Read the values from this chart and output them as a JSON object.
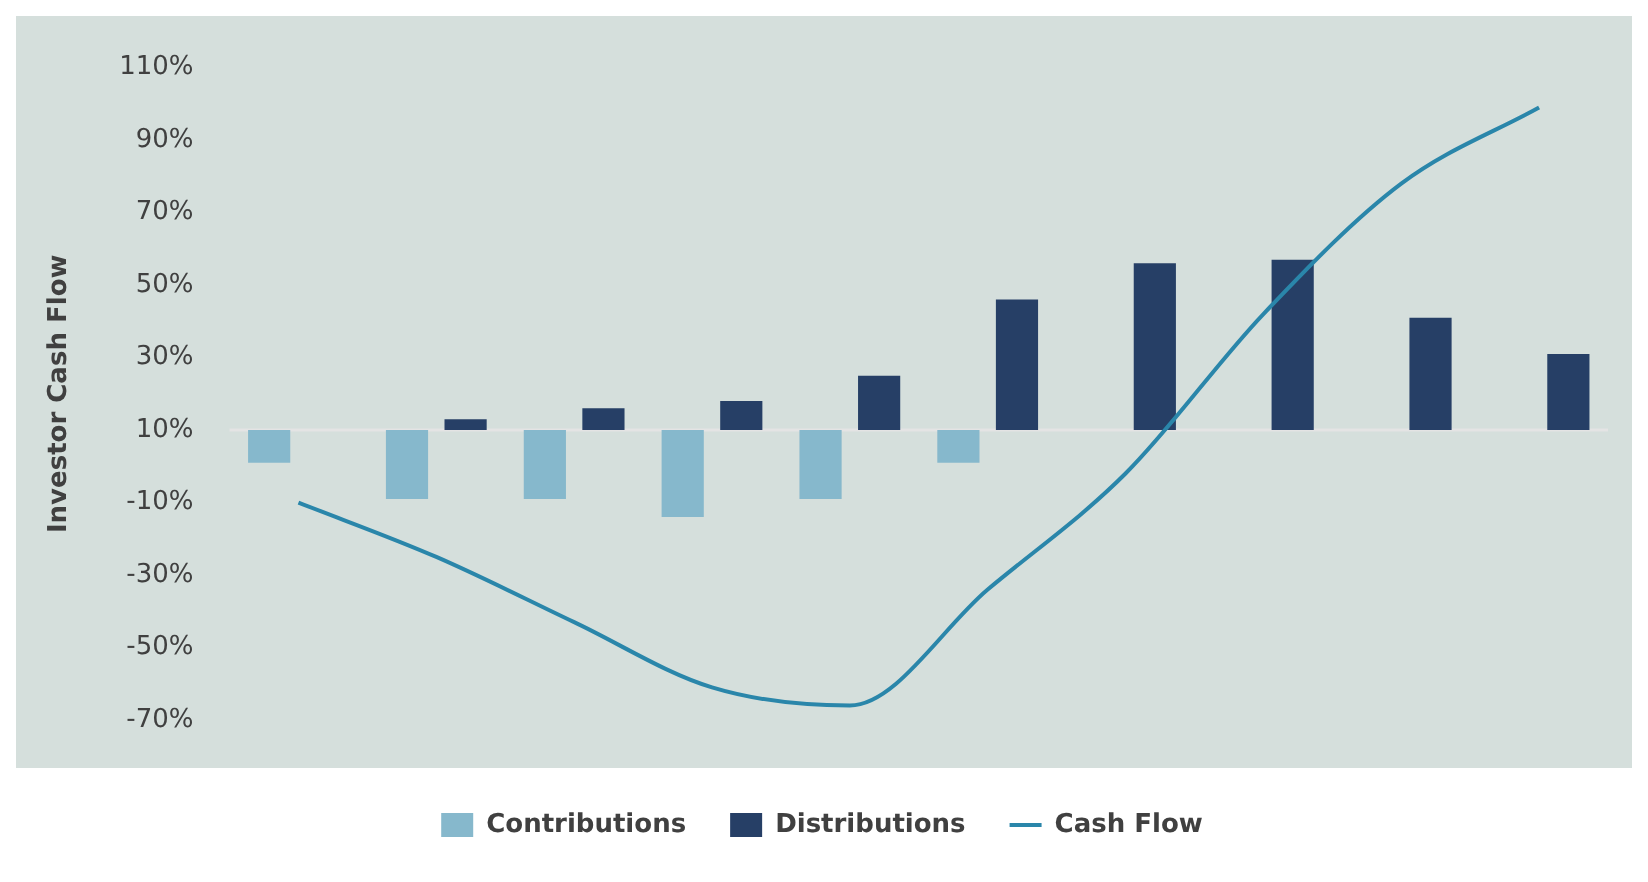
{
  "chart_data": {
    "type": "bar",
    "ylabel": "Investor Cash Flow",
    "categories": [
      null,
      null,
      null,
      null,
      null,
      null,
      null,
      null,
      null,
      null
    ],
    "series": [
      {
        "name": "Contributions",
        "color": "#86b8cc",
        "base": [
          10,
          10,
          10,
          10,
          10,
          10,
          null,
          null,
          null,
          null
        ],
        "values": [
          -9,
          -19,
          -19,
          -24,
          -19,
          -9,
          null,
          null,
          null,
          null
        ]
      },
      {
        "name": "Distributions",
        "color": "#263f66",
        "base": [
          null,
          10,
          10,
          10,
          10,
          10,
          10,
          10,
          10,
          10
        ],
        "values": [
          null,
          3,
          6,
          8,
          15,
          36,
          46,
          47,
          31,
          21
        ]
      },
      {
        "name": "Cash Flow",
        "type": "line",
        "color": "#2a86aa",
        "values": [
          -10,
          -25,
          -43,
          -61,
          -66,
          -34,
          -2,
          42,
          78,
          99
        ]
      }
    ],
    "ylim": [
      -70,
      110
    ],
    "yticks": [
      {
        "value": -70,
        "label": "-70%"
      },
      {
        "value": -50,
        "label": "-50%"
      },
      {
        "value": -30,
        "label": "-30%"
      },
      {
        "value": -10,
        "label": "-10%"
      },
      {
        "value": 10,
        "label": "10%"
      },
      {
        "value": 30,
        "label": "30%"
      },
      {
        "value": 50,
        "label": "50%"
      },
      {
        "value": 70,
        "label": "70%"
      },
      {
        "value": 90,
        "label": "90%"
      },
      {
        "value": 110,
        "label": "110%"
      }
    ],
    "ref_lines": [
      {
        "axis": "y",
        "value": 10,
        "color": "#e4e4e4"
      }
    ],
    "tick_labels": "y",
    "grid": false,
    "legend": "bottom",
    "line_style": "solid",
    "marker": "none"
  }
}
